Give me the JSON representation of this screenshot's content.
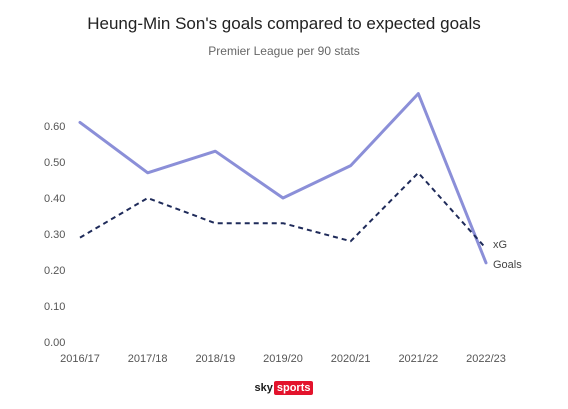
{
  "chart_data": {
    "type": "line",
    "title": "Heung-Min Son's goals compared to expected goals",
    "subtitle": "Premier League per 90 stats",
    "categories": [
      "2016/17",
      "2017/18",
      "2018/19",
      "2019/20",
      "2020/21",
      "2021/22",
      "2022/23"
    ],
    "y_ticks": [
      "0.00",
      "0.10",
      "0.20",
      "0.30",
      "0.40",
      "0.50",
      "0.60"
    ],
    "ylim": [
      0,
      0.6
    ],
    "grid": false,
    "series": [
      {
        "name": "Goals",
        "values": [
          0.61,
          0.47,
          0.53,
          0.4,
          0.49,
          0.69,
          0.22
        ],
        "color": "#8b8fd8",
        "style": "solid"
      },
      {
        "name": "xG",
        "values": [
          0.29,
          0.4,
          0.33,
          0.33,
          0.28,
          0.47,
          0.26
        ],
        "color": "#1f2b5a",
        "style": "dashed"
      }
    ]
  },
  "branding": {
    "sky": "sky",
    "sports": "sports"
  }
}
